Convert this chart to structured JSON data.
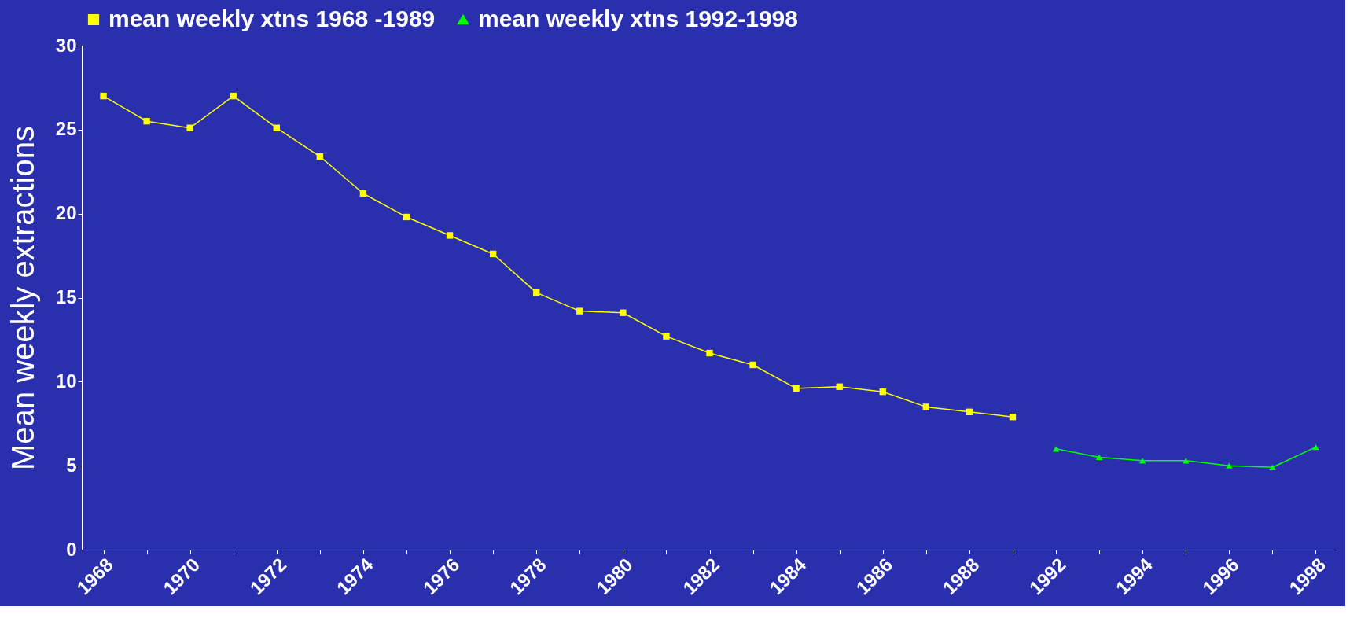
{
  "chart_data": {
    "type": "line",
    "ylabel": "Mean weekly extractions",
    "categories": [
      "1968",
      null,
      "1970",
      null,
      "1972",
      null,
      "1974",
      null,
      "1976",
      null,
      "1978",
      null,
      "1980",
      null,
      "1982",
      null,
      "1984",
      null,
      "1986",
      null,
      "1988",
      null,
      "1992",
      null,
      "1994",
      null,
      "1996",
      null,
      "1998"
    ],
    "series": [
      {
        "name": "mean weekly xtns 1968 -1989",
        "color": "#ffff00",
        "marker": "square",
        "values": [
          27,
          25.5,
          25.1,
          27,
          25.1,
          23.4,
          21.2,
          19.8,
          18.7,
          17.6,
          15.3,
          14.2,
          14.1,
          12.7,
          11.7,
          11.0,
          9.6,
          9.7,
          9.4,
          8.5,
          8.2,
          7.9,
          null,
          null,
          null,
          null,
          null,
          null,
          null
        ]
      },
      {
        "name": "mean weekly xtns 1992-1998",
        "color": "#00ff00",
        "marker": "triangle",
        "values": [
          null,
          null,
          null,
          null,
          null,
          null,
          null,
          null,
          null,
          null,
          null,
          null,
          null,
          null,
          null,
          null,
          null,
          null,
          null,
          null,
          null,
          null,
          6.0,
          5.5,
          5.3,
          5.3,
          5.0,
          4.9,
          6.1
        ]
      }
    ],
    "ylim": [
      0,
      30
    ],
    "yticks": [
      0,
      5,
      10,
      15,
      20,
      25,
      30
    ],
    "grid": false,
    "legend": "top",
    "line_style": "solid"
  }
}
